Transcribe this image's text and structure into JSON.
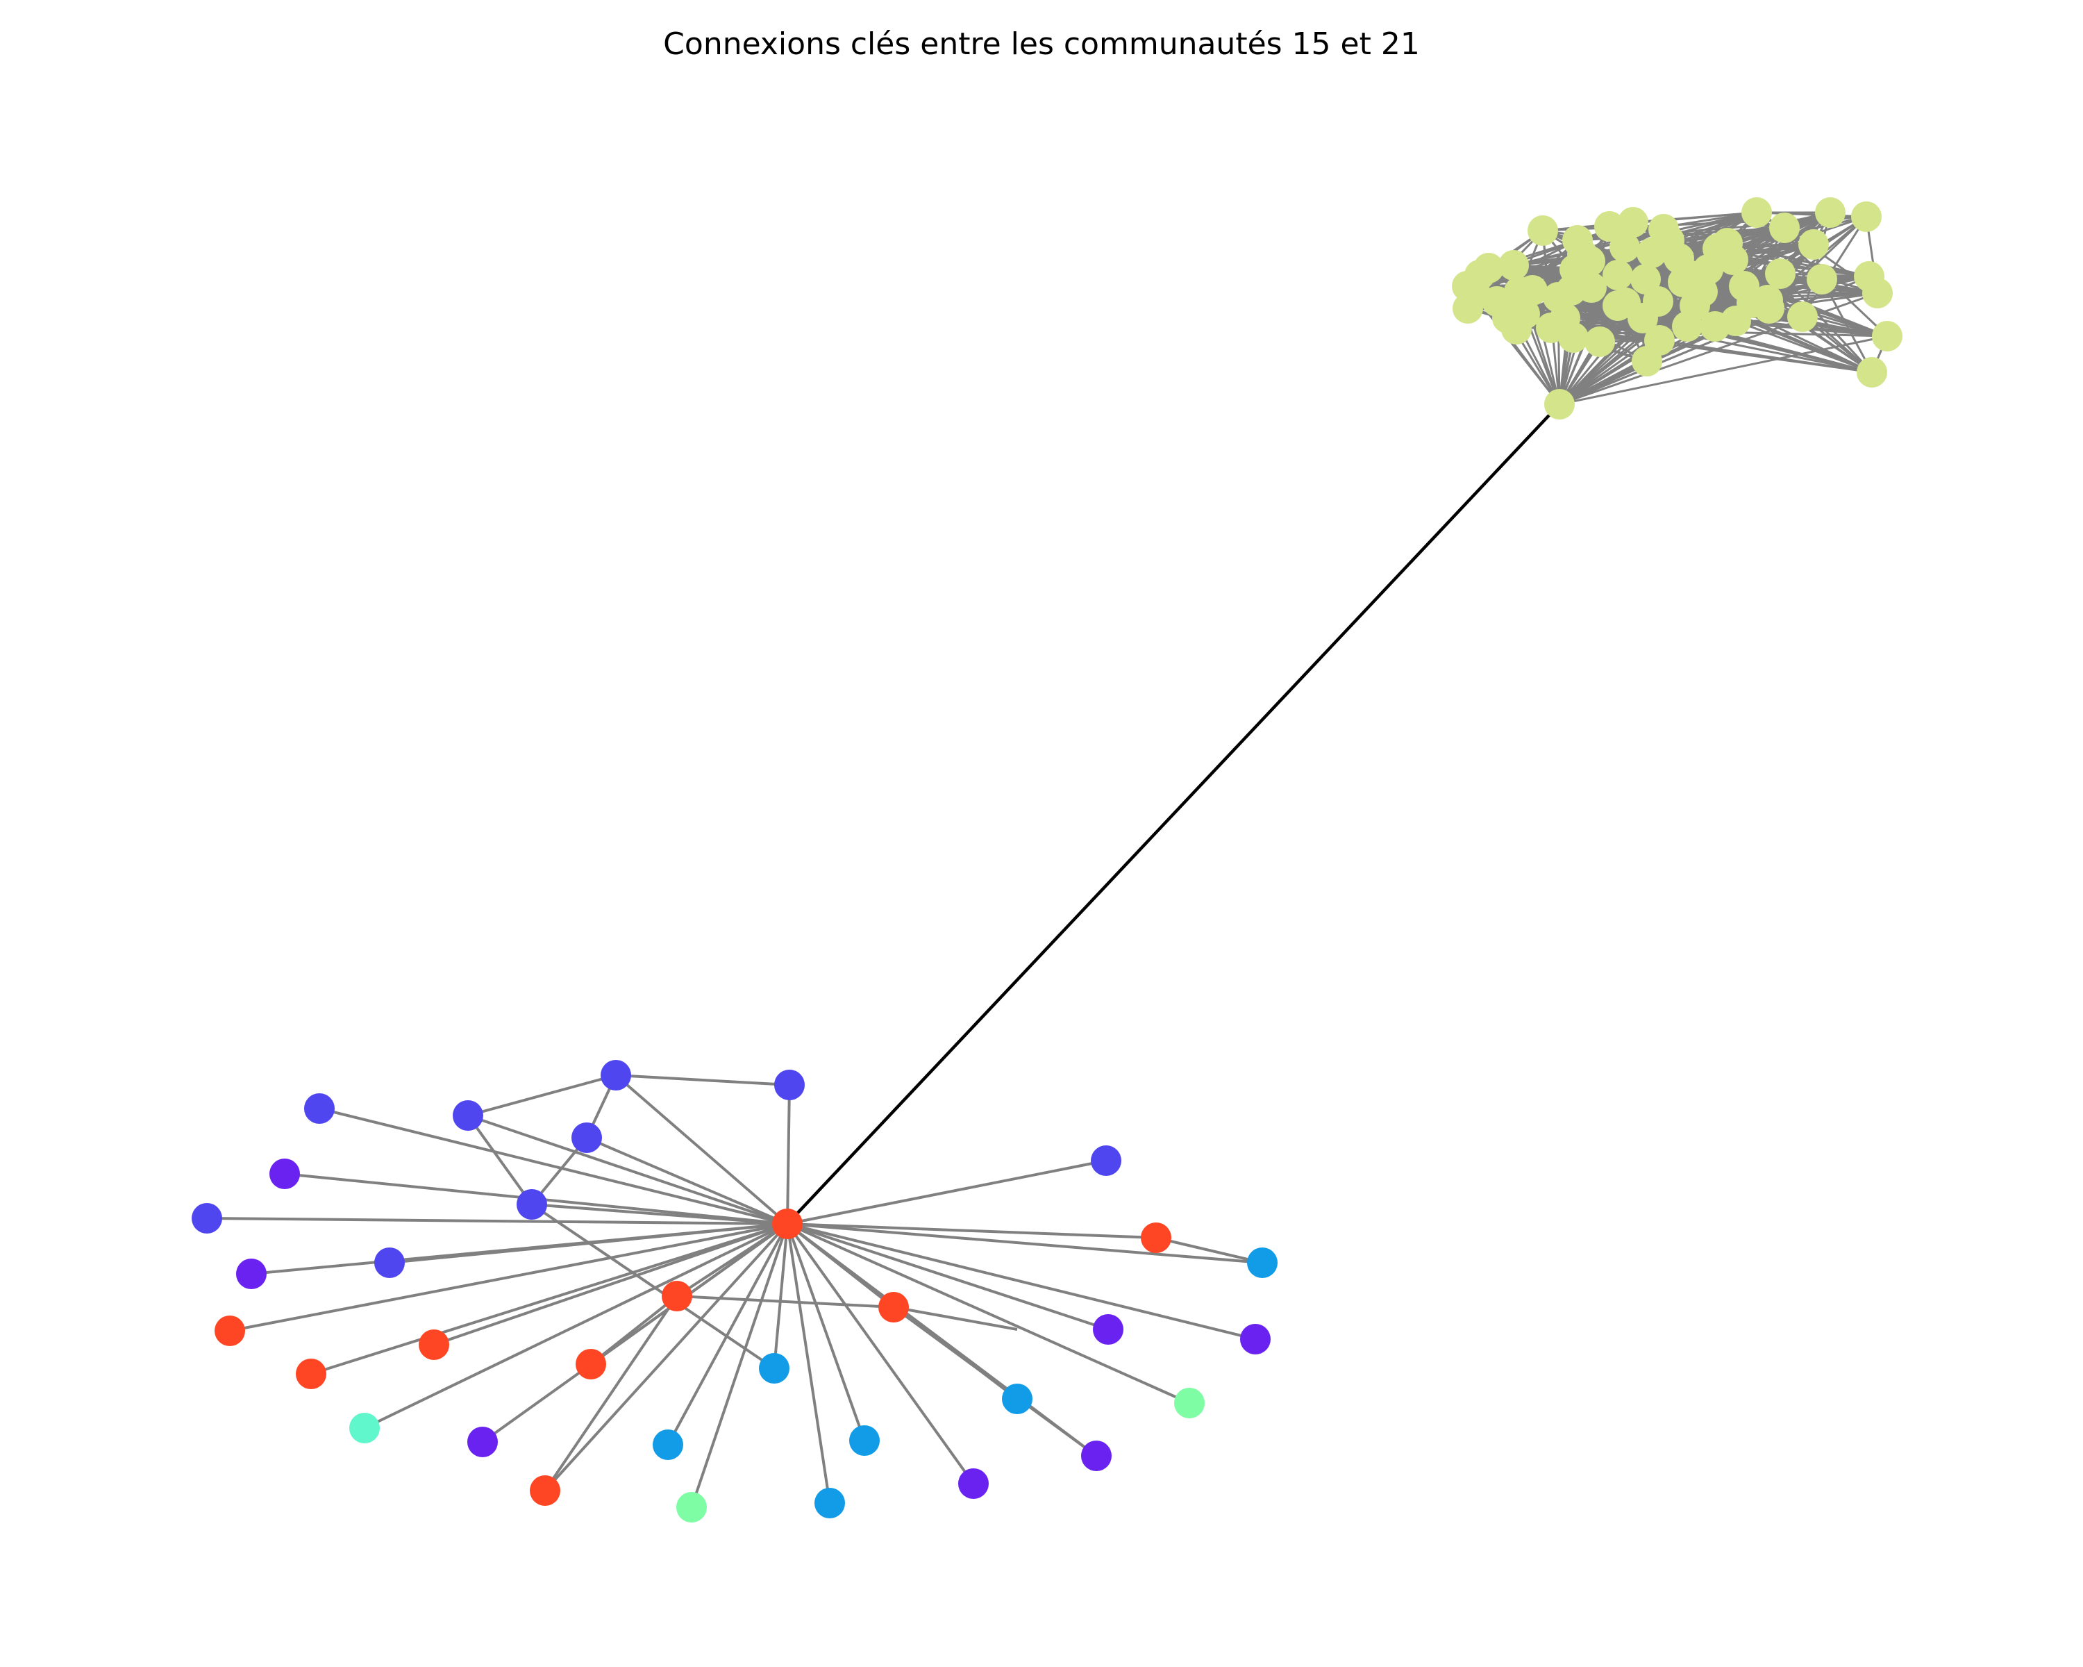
{
  "title": "Connexions clés entre les communautés 15 et 21",
  "colors": {
    "edge": "#808080",
    "bridge_edge": "#000000",
    "background": "#ffffff"
  },
  "communities": [
    "15",
    "21"
  ]
}
